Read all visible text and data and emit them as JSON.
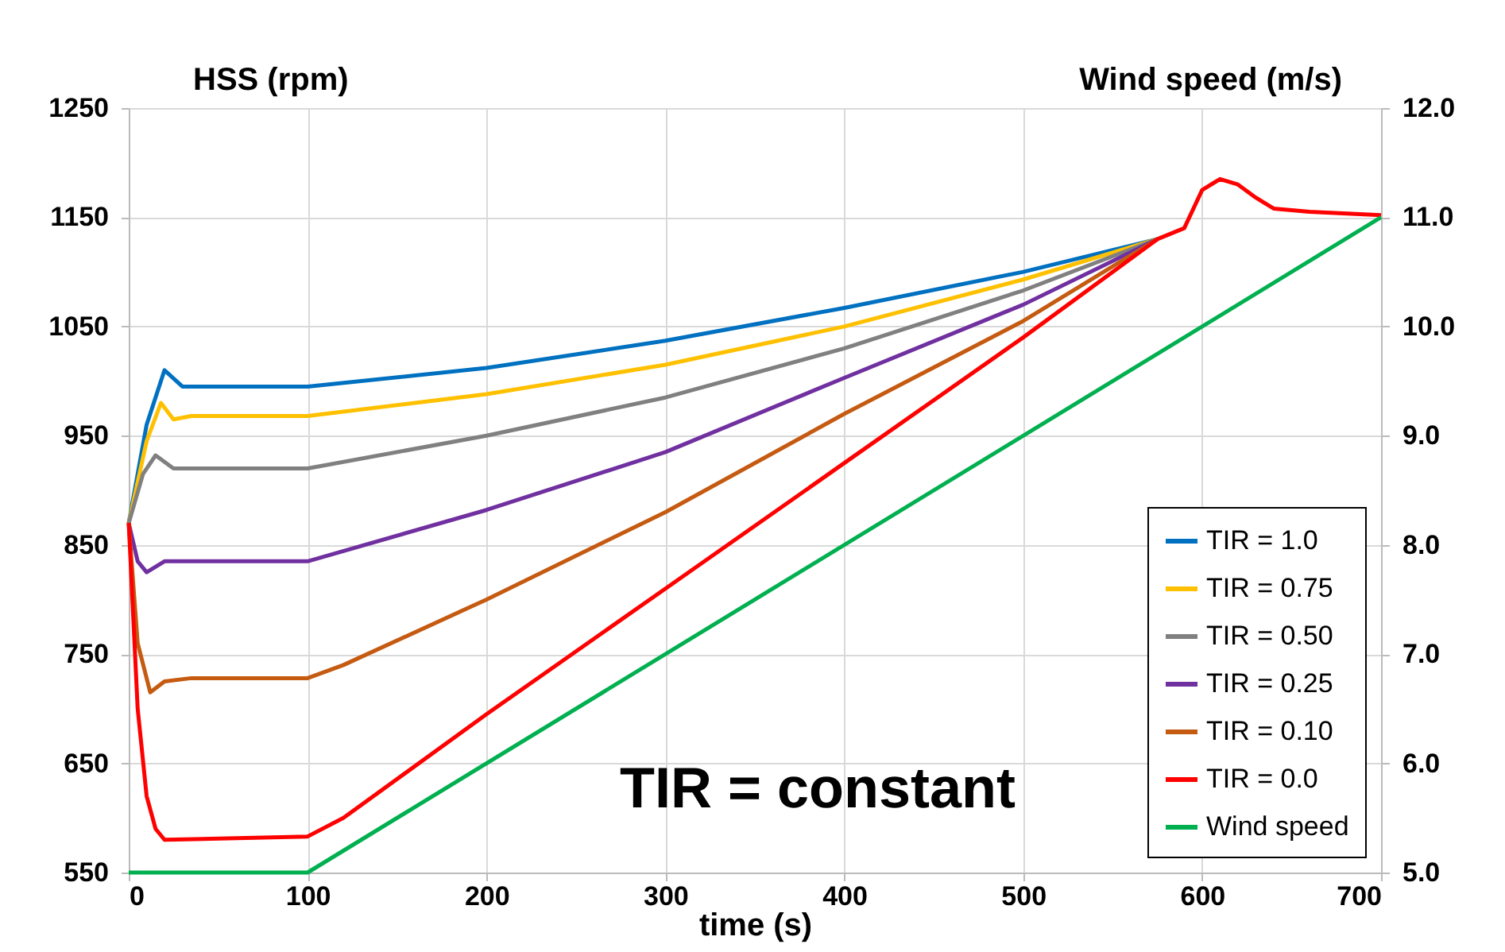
{
  "chart_data": {
    "type": "line",
    "xlabel": "time (s)",
    "ylabel": "HSS (rpm)",
    "y2label": "Wind speed (m/s)",
    "annotations": [
      "TIR = constant"
    ],
    "xlim": [
      0,
      700
    ],
    "xticks": [
      0,
      100,
      200,
      300,
      400,
      500,
      600,
      700
    ],
    "ylim": [
      550,
      1250
    ],
    "yticks": [
      550,
      650,
      750,
      850,
      950,
      1050,
      1150,
      1250
    ],
    "y2lim": [
      5,
      12
    ],
    "y2ticks": [
      {
        "value": 5,
        "label": "5.0"
      },
      {
        "value": 6,
        "label": "6.0"
      },
      {
        "value": 7,
        "label": "7.0"
      },
      {
        "value": 8,
        "label": "8.0"
      },
      {
        "value": 9,
        "label": "9.0"
      },
      {
        "value": 10,
        "label": "10.0"
      },
      {
        "value": 11,
        "label": "11.0"
      },
      {
        "value": 12,
        "label": "12.0"
      }
    ],
    "grid": true,
    "legend": "bottom right",
    "series": [
      {
        "name": "TIR = 1.0",
        "color": "#0070c0",
        "x": [
          0,
          10,
          20,
          30,
          40,
          100,
          200,
          300,
          400,
          500,
          575
        ],
        "values": [
          870,
          960,
          1010,
          995,
          995,
          995,
          1012,
          1037,
          1067,
          1100,
          1130
        ]
      },
      {
        "name": "TIR = 0.75",
        "color": "#ffc000",
        "x": [
          0,
          10,
          18,
          25,
          35,
          100,
          200,
          300,
          400,
          500,
          575
        ],
        "values": [
          870,
          945,
          980,
          965,
          968,
          968,
          988,
          1015,
          1050,
          1093,
          1130
        ]
      },
      {
        "name": "TIR = 0.50",
        "color": "#808080",
        "x": [
          0,
          8,
          15,
          25,
          35,
          100,
          200,
          300,
          400,
          500,
          575
        ],
        "values": [
          870,
          915,
          932,
          920,
          920,
          920,
          950,
          985,
          1030,
          1083,
          1130
        ]
      },
      {
        "name": "TIR = 0.25",
        "color": "#7030a0",
        "x": [
          0,
          5,
          10,
          20,
          35,
          100,
          200,
          300,
          400,
          500,
          575
        ],
        "values": [
          870,
          835,
          825,
          835,
          835,
          835,
          882,
          935,
          1003,
          1070,
          1130
        ]
      },
      {
        "name": "TIR = 0.10",
        "color": "#c55a11",
        "x": [
          0,
          5,
          12,
          20,
          35,
          100,
          120,
          200,
          300,
          400,
          500,
          575
        ],
        "values": [
          870,
          760,
          715,
          725,
          728,
          728,
          740,
          800,
          880,
          970,
          1055,
          1130
        ]
      },
      {
        "name": "TIR = 0.0",
        "color": "#ff0000",
        "x": [
          0,
          5,
          10,
          15,
          20,
          100,
          120,
          200,
          300,
          400,
          500,
          575,
          590,
          600,
          610,
          620,
          630,
          640,
          660,
          700
        ],
        "values": [
          870,
          700,
          620,
          590,
          580,
          583,
          600,
          695,
          810,
          925,
          1040,
          1130,
          1140,
          1175,
          1185,
          1180,
          1168,
          1158,
          1155,
          1152
        ]
      },
      {
        "name": "Wind speed",
        "color": "#00b050",
        "axis": "y2",
        "x": [
          0,
          100,
          700
        ],
        "values": [
          5,
          5,
          11
        ]
      }
    ]
  }
}
